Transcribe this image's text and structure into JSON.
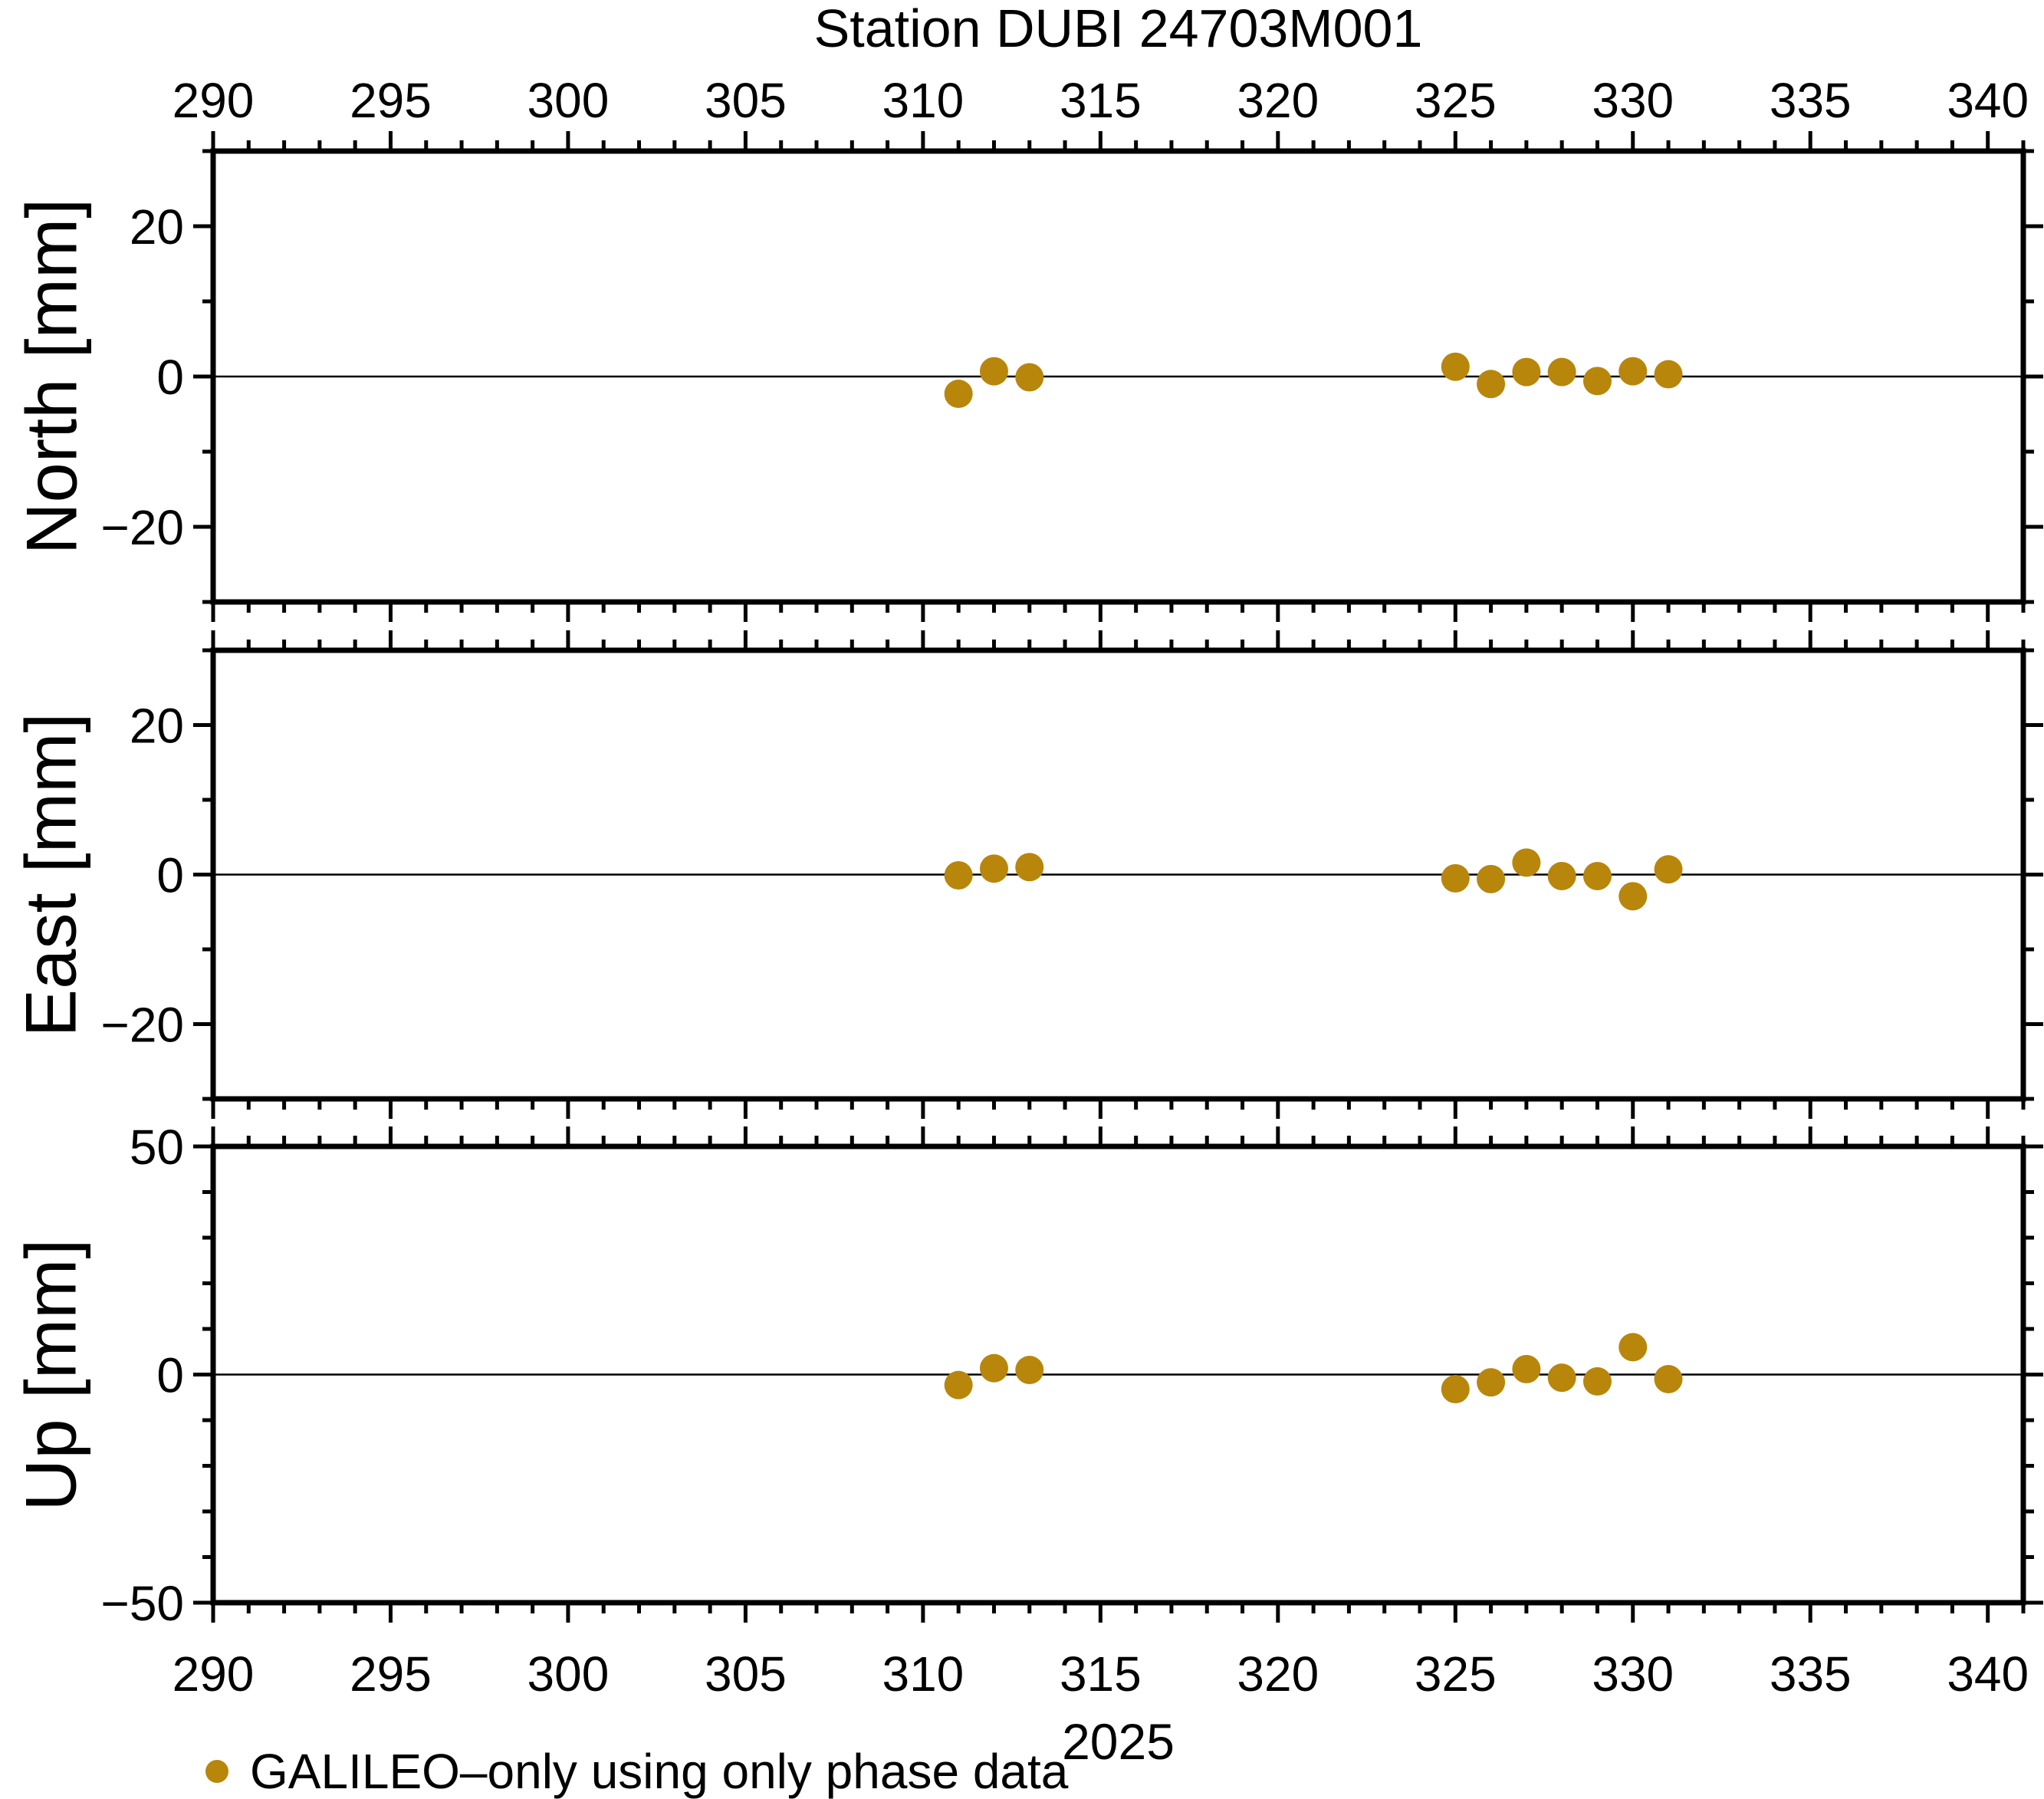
{
  "title": "Station DUBI 24703M001",
  "x_axis": {
    "year_label": "2025",
    "range": [
      290,
      341
    ],
    "major_ticks": [
      290,
      295,
      300,
      305,
      310,
      315,
      320,
      325,
      330,
      335,
      340
    ],
    "minor_step": 1
  },
  "legend": {
    "label": "GALILEO–only using only phase data",
    "marker_color": "#B8860B"
  },
  "colors": {
    "marker": "#B8860B",
    "axis": "#000000",
    "zero_line": "#000000",
    "background": "#FFFFFF"
  },
  "chart_data": [
    {
      "type": "scatter",
      "panel": "north",
      "ylabel": "North [mm]",
      "ylim": [
        -30,
        30
      ],
      "yticks": [
        20,
        0,
        -20
      ],
      "y_minor_step": 10,
      "x": [
        311,
        312,
        313,
        325,
        326,
        327,
        328,
        329,
        330,
        331
      ],
      "y": [
        -2.3,
        0.7,
        -0.1,
        1.3,
        -1.0,
        0.6,
        0.6,
        -0.6,
        0.7,
        0.3
      ]
    },
    {
      "type": "scatter",
      "panel": "east",
      "ylabel": "East [mm]",
      "ylim": [
        -30,
        30
      ],
      "yticks": [
        20,
        0,
        -20
      ],
      "y_minor_step": 10,
      "x": [
        311,
        312,
        313,
        325,
        326,
        327,
        328,
        329,
        330,
        331
      ],
      "y": [
        -0.1,
        0.8,
        1.0,
        -0.5,
        -0.6,
        1.6,
        -0.2,
        -0.2,
        -2.9,
        0.7
      ]
    },
    {
      "type": "scatter",
      "panel": "up",
      "ylabel": "Up [mm]",
      "ylim": [
        -50,
        50
      ],
      "yticks": [
        50,
        0,
        -50
      ],
      "y_minor_step": 10,
      "x": [
        311,
        312,
        313,
        325,
        326,
        327,
        328,
        329,
        330,
        331
      ],
      "y": [
        -2.3,
        1.4,
        1.0,
        -3.2,
        -1.7,
        1.2,
        -0.7,
        -1.5,
        6.0,
        -1.0
      ]
    }
  ]
}
